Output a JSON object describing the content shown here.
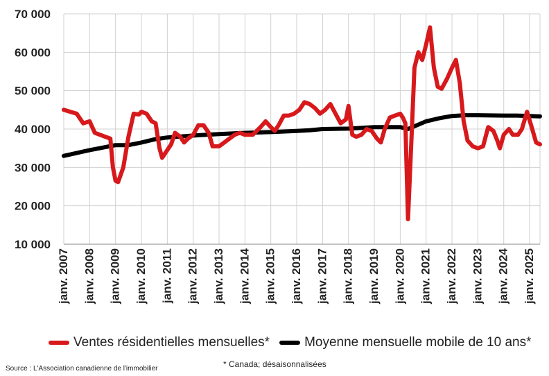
{
  "chart_data": {
    "type": "line",
    "title": "",
    "xlabel": "",
    "ylabel": "",
    "ylim": [
      10000,
      70000
    ],
    "yticks": [
      10000,
      20000,
      30000,
      40000,
      50000,
      60000,
      70000
    ],
    "ytick_labels": [
      "10 000",
      "20 000",
      "30 000",
      "40 000",
      "50 000",
      "60 000",
      "70 000"
    ],
    "xticks": [
      2007,
      2008,
      2009,
      2010,
      2011,
      2012,
      2013,
      2014,
      2015,
      2016,
      2017,
      2018,
      2019,
      2020,
      2021,
      2022,
      2023,
      2024,
      2025
    ],
    "xtick_labels": [
      "janv. 2007",
      "janv. 2008",
      "janv. 2009",
      "janv. 2010",
      "janv. 2011",
      "janv. 2012",
      "janv. 2013",
      "janv. 2014",
      "janv. 2015",
      "janv. 2016",
      "janv. 2017",
      "janv. 2018",
      "janv. 2019",
      "janv. 2020",
      "janv. 2021",
      "janv. 2022",
      "janv. 2023",
      "janv. 2024",
      "janv. 2025"
    ],
    "grid": true,
    "legend_position": "bottom",
    "series": [
      {
        "name": "Ventes résidentielles mensuelles*",
        "color": "#d7191c",
        "points": [
          [
            2007.0,
            45000
          ],
          [
            2007.25,
            44500
          ],
          [
            2007.5,
            44000
          ],
          [
            2007.75,
            41500
          ],
          [
            2008.0,
            42000
          ],
          [
            2008.2,
            39000
          ],
          [
            2008.4,
            38500
          ],
          [
            2008.6,
            38000
          ],
          [
            2008.8,
            37500
          ],
          [
            2008.9,
            30000
          ],
          [
            2009.0,
            26500
          ],
          [
            2009.1,
            26200
          ],
          [
            2009.3,
            30000
          ],
          [
            2009.5,
            38000
          ],
          [
            2009.7,
            44000
          ],
          [
            2009.9,
            43800
          ],
          [
            2010.0,
            44500
          ],
          [
            2010.2,
            44000
          ],
          [
            2010.4,
            42000
          ],
          [
            2010.55,
            41500
          ],
          [
            2010.7,
            35000
          ],
          [
            2010.8,
            32500
          ],
          [
            2011.0,
            34500
          ],
          [
            2011.15,
            36000
          ],
          [
            2011.3,
            39000
          ],
          [
            2011.5,
            38000
          ],
          [
            2011.65,
            36500
          ],
          [
            2011.8,
            37500
          ],
          [
            2012.0,
            38500
          ],
          [
            2012.2,
            41000
          ],
          [
            2012.4,
            41000
          ],
          [
            2012.6,
            39000
          ],
          [
            2012.75,
            35500
          ],
          [
            2013.0,
            35500
          ],
          [
            2013.2,
            36500
          ],
          [
            2013.4,
            37500
          ],
          [
            2013.6,
            38500
          ],
          [
            2013.8,
            39000
          ],
          [
            2014.0,
            38500
          ],
          [
            2014.3,
            38500
          ],
          [
            2014.6,
            40500
          ],
          [
            2014.8,
            42000
          ],
          [
            2015.0,
            40500
          ],
          [
            2015.15,
            39500
          ],
          [
            2015.3,
            41000
          ],
          [
            2015.5,
            43500
          ],
          [
            2015.7,
            43500
          ],
          [
            2015.9,
            44000
          ],
          [
            2016.1,
            45000
          ],
          [
            2016.3,
            47000
          ],
          [
            2016.5,
            46500
          ],
          [
            2016.7,
            45500
          ],
          [
            2016.9,
            44000
          ],
          [
            2017.1,
            45000
          ],
          [
            2017.3,
            46500
          ],
          [
            2017.5,
            44000
          ],
          [
            2017.7,
            41500
          ],
          [
            2017.9,
            42500
          ],
          [
            2018.0,
            46000
          ],
          [
            2018.15,
            38500
          ],
          [
            2018.3,
            38000
          ],
          [
            2018.5,
            38500
          ],
          [
            2018.7,
            40000
          ],
          [
            2018.9,
            39500
          ],
          [
            2019.1,
            37500
          ],
          [
            2019.25,
            36500
          ],
          [
            2019.4,
            40000
          ],
          [
            2019.6,
            43000
          ],
          [
            2019.8,
            43500
          ],
          [
            2020.0,
            44000
          ],
          [
            2020.1,
            43000
          ],
          [
            2020.2,
            41500
          ],
          [
            2020.3,
            16500
          ],
          [
            2020.45,
            40000
          ],
          [
            2020.55,
            56000
          ],
          [
            2020.7,
            60000
          ],
          [
            2020.85,
            58000
          ],
          [
            2021.0,
            62000
          ],
          [
            2021.15,
            66500
          ],
          [
            2021.3,
            56000
          ],
          [
            2021.45,
            51000
          ],
          [
            2021.6,
            50500
          ],
          [
            2021.8,
            53000
          ],
          [
            2022.0,
            56000
          ],
          [
            2022.15,
            58000
          ],
          [
            2022.3,
            52000
          ],
          [
            2022.45,
            42000
          ],
          [
            2022.6,
            37000
          ],
          [
            2022.8,
            35500
          ],
          [
            2023.0,
            35000
          ],
          [
            2023.2,
            35500
          ],
          [
            2023.4,
            40500
          ],
          [
            2023.6,
            39500
          ],
          [
            2023.75,
            37000
          ],
          [
            2023.85,
            35000
          ],
          [
            2024.0,
            38500
          ],
          [
            2024.2,
            40000
          ],
          [
            2024.35,
            38500
          ],
          [
            2024.55,
            38500
          ],
          [
            2024.7,
            40000
          ],
          [
            2024.9,
            44500
          ],
          [
            2025.1,
            40000
          ],
          [
            2025.25,
            36500
          ],
          [
            2025.4,
            36000
          ]
        ]
      },
      {
        "name": "Moyenne mensuelle mobile de 10 ans*",
        "color": "#000000",
        "points": [
          [
            2007.0,
            33000
          ],
          [
            2008.0,
            34500
          ],
          [
            2009.0,
            35800
          ],
          [
            2009.5,
            35800
          ],
          [
            2010.0,
            36500
          ],
          [
            2010.5,
            37300
          ],
          [
            2011.0,
            37800
          ],
          [
            2012.0,
            38300
          ],
          [
            2013.0,
            38700
          ],
          [
            2014.0,
            39000
          ],
          [
            2015.0,
            39200
          ],
          [
            2016.0,
            39500
          ],
          [
            2016.5,
            39700
          ],
          [
            2017.0,
            40000
          ],
          [
            2018.0,
            40100
          ],
          [
            2019.0,
            40500
          ],
          [
            2020.0,
            40500
          ],
          [
            2020.3,
            40000
          ],
          [
            2021.0,
            42000
          ],
          [
            2021.5,
            42800
          ],
          [
            2022.0,
            43400
          ],
          [
            2022.5,
            43600
          ],
          [
            2023.0,
            43600
          ],
          [
            2024.0,
            43500
          ],
          [
            2024.5,
            43500
          ],
          [
            2025.0,
            43400
          ],
          [
            2025.4,
            43300
          ]
        ]
      }
    ]
  },
  "legend": {
    "series1": "Ventes résidentielles mensuelles*",
    "series2": "Moyenne mensuelle mobile de 10 ans*",
    "series1_color": "#d7191c",
    "series2_color": "#000000"
  },
  "note": "* Canada; désaisonnalisées",
  "source": "Source : L'Association canadienne de l'immobilier"
}
